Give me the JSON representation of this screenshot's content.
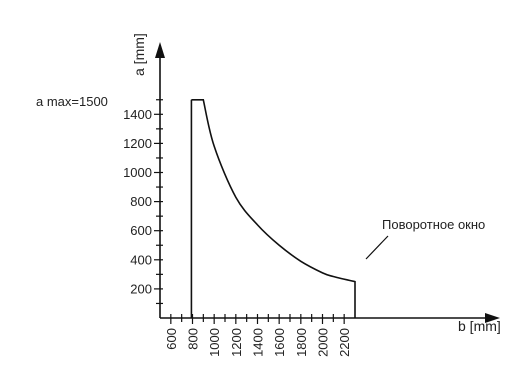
{
  "chart_data": {
    "type": "line",
    "title": "",
    "xlabel": "b [mm]",
    "ylabel": "a [mm]",
    "xlim": [
      500,
      2400
    ],
    "ylim": [
      0,
      1600
    ],
    "x_ticks": [
      600,
      800,
      1000,
      1200,
      1400,
      1600,
      1800,
      2000,
      2200
    ],
    "y_ticks": [
      200,
      400,
      600,
      800,
      1000,
      1200,
      1400
    ],
    "series": [
      {
        "points": [
          [
            790,
            1500
          ],
          [
            900,
            1500
          ],
          [
            1000,
            1180
          ],
          [
            1200,
            830
          ],
          [
            1400,
            640
          ],
          [
            1600,
            500
          ],
          [
            1800,
            390
          ],
          [
            2000,
            310
          ],
          [
            2100,
            285
          ],
          [
            2300,
            250
          ],
          [
            2300,
            0
          ]
        ]
      }
    ],
    "vertical_line": {
      "x": 790,
      "y_from": 0,
      "y_to": 1500
    },
    "annotations": {
      "amax": "a max=1500",
      "curve": "Поворотное окно"
    },
    "grid": false,
    "legend": "none"
  }
}
